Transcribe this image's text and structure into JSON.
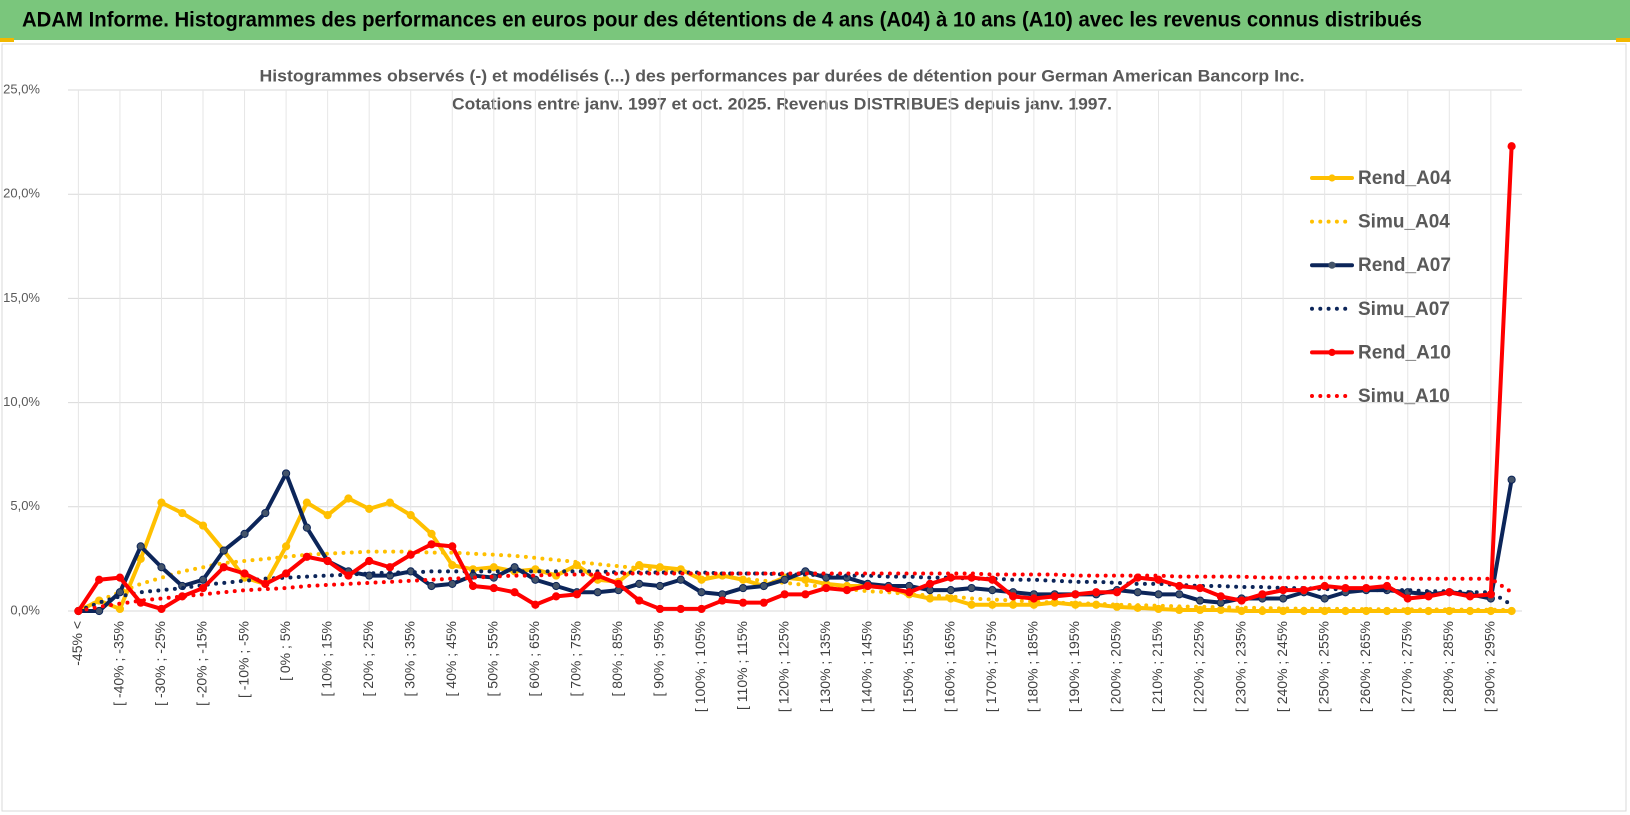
{
  "header": {
    "title": "ADAM Informe. Histogrammes des performances en euros pour des détentions de 4 ans (A04) à 10 ans (A10) avec les revenus connus distribués"
  },
  "chart_data": {
    "type": "line",
    "title": "Histogrammes observés (-) et modélisés (...) des performances par durées de détention pour German American Bancorp Inc.",
    "subtitle": "Cotations entre janv. 1997 et oct. 2025.  Revenus DISTRIBUES depuis janv. 1997.",
    "categories": [
      "-45% <",
      null,
      "[ -40% ; -35%",
      null,
      "[ -30% ; -25%",
      null,
      "[ -20% ; -15%",
      null,
      "[ -10% ; -5%",
      null,
      "[ 0% ; 5%",
      null,
      "[ 10% ; 15%",
      null,
      "[ 20% ; 25%",
      null,
      "[ 30% ; 35%",
      null,
      "[ 40% ; 45%",
      null,
      "[ 50% ; 55%",
      null,
      "[ 60% ; 65%",
      null,
      "[ 70% ; 75%",
      null,
      "[ 80% ; 85%",
      null,
      "[ 90% ; 95%",
      null,
      "[ 100% ; 105%",
      null,
      "[ 110% ; 115%",
      null,
      "[ 120% ; 125%",
      null,
      "[ 130% ; 135%",
      null,
      "[ 140% ; 145%",
      null,
      "[ 150% ; 155%",
      null,
      "[ 160% ; 165%",
      null,
      "[ 170% ; 175%",
      null,
      "[ 180% ; 185%",
      null,
      "[ 190% ; 195%",
      null,
      "[ 200% ; 205%",
      null,
      "[ 210% ; 215%",
      null,
      "[ 220% ; 225%",
      null,
      "[ 230% ; 235%",
      null,
      "[ 240% ; 245%",
      null,
      "[ 250% ; 255%",
      null,
      "[ 260% ; 265%",
      null,
      "[ 270% ; 275%",
      null,
      "[ 280% ; 285%",
      null,
      "[ 290% ; 295%",
      null
    ],
    "series": [
      {
        "name": "Rend_A04",
        "color": "#ffc000",
        "style": "solid",
        "values": [
          0,
          0.5,
          0.1,
          2.5,
          5.2,
          4.7,
          4.1,
          2.9,
          1.6,
          1.3,
          3.1,
          5.2,
          4.6,
          5.4,
          4.9,
          5.2,
          4.6,
          3.7,
          2.2,
          2.0,
          2.1,
          1.9,
          2.0,
          1.7,
          2.2,
          1.5,
          1.4,
          2.2,
          2.1,
          2.0,
          1.5,
          1.7,
          1.5,
          1.2,
          1.6,
          1.5,
          1.3,
          1.2,
          1.2,
          1.1,
          0.8,
          0.6,
          0.6,
          0.3,
          0.3,
          0.3,
          0.3,
          0.4,
          0.3,
          0.3,
          0.2,
          0.15,
          0.1,
          0.05,
          0.05,
          0.05,
          0,
          0,
          0,
          0,
          0,
          0,
          0,
          0,
          0,
          0,
          0,
          0,
          0,
          0
        ]
      },
      {
        "name": "Simu_A04",
        "color": "#ffc000",
        "style": "dotted",
        "values": [
          0,
          0.5,
          0.9,
          1.3,
          1.6,
          1.9,
          2.1,
          2.3,
          2.4,
          2.5,
          2.6,
          2.7,
          2.75,
          2.8,
          2.85,
          2.85,
          2.85,
          2.8,
          2.8,
          2.75,
          2.7,
          2.65,
          2.55,
          2.45,
          2.35,
          2.25,
          2.15,
          2.05,
          1.95,
          1.85,
          1.75,
          1.65,
          1.55,
          1.45,
          1.35,
          1.25,
          1.15,
          1.05,
          0.95,
          0.9,
          0.8,
          0.75,
          0.7,
          0.6,
          0.55,
          0.5,
          0.45,
          0.4,
          0.38,
          0.35,
          0.3,
          0.28,
          0.25,
          0.22,
          0.2,
          0.18,
          0.16,
          0.14,
          0.12,
          0.11,
          0.1,
          0.1,
          0.09,
          0.08,
          0.08,
          0.07,
          0.07,
          0.06,
          0.06,
          0.05
        ]
      },
      {
        "name": "Rend_A07",
        "color": "#0c2559",
        "style": "solid",
        "values": [
          0,
          0,
          0.9,
          3.1,
          2.1,
          1.2,
          1.5,
          2.9,
          3.7,
          4.7,
          6.6,
          4.0,
          2.4,
          1.9,
          1.7,
          1.7,
          1.9,
          1.2,
          1.3,
          1.7,
          1.6,
          2.1,
          1.5,
          1.2,
          0.9,
          0.9,
          1.0,
          1.3,
          1.2,
          1.5,
          0.9,
          0.8,
          1.1,
          1.2,
          1.5,
          1.9,
          1.6,
          1.6,
          1.3,
          1.2,
          1.2,
          1.0,
          1.0,
          1.1,
          1.0,
          0.9,
          0.8,
          0.8,
          0.8,
          0.8,
          1.0,
          0.9,
          0.8,
          0.8,
          0.5,
          0.4,
          0.6,
          0.6,
          0.6,
          0.9,
          0.6,
          0.9,
          1.0,
          1.0,
          0.9,
          0.8,
          0.9,
          0.8,
          0.6,
          6.3
        ]
      },
      {
        "name": "Simu_A07",
        "color": "#0c2559",
        "style": "dotted",
        "values": [
          0,
          0.4,
          0.7,
          0.9,
          1.0,
          1.1,
          1.25,
          1.35,
          1.45,
          1.55,
          1.6,
          1.65,
          1.7,
          1.75,
          1.8,
          1.85,
          1.85,
          1.9,
          1.9,
          1.9,
          1.9,
          1.9,
          1.9,
          1.9,
          1.9,
          1.9,
          1.85,
          1.85,
          1.85,
          1.85,
          1.85,
          1.8,
          1.8,
          1.8,
          1.75,
          1.75,
          1.7,
          1.7,
          1.7,
          1.65,
          1.65,
          1.6,
          1.6,
          1.55,
          1.55,
          1.5,
          1.5,
          1.45,
          1.4,
          1.4,
          1.35,
          1.3,
          1.3,
          1.25,
          1.2,
          1.2,
          1.15,
          1.15,
          1.1,
          1.1,
          1.05,
          1.05,
          1.0,
          1.0,
          1.0,
          0.95,
          0.95,
          0.9,
          0.9,
          0.3
        ]
      },
      {
        "name": "Rend_A10",
        "color": "#ff0000",
        "style": "solid",
        "values": [
          0,
          1.5,
          1.6,
          0.4,
          0.1,
          0.7,
          1.1,
          2.1,
          1.8,
          1.3,
          1.8,
          2.6,
          2.4,
          1.7,
          2.4,
          2.1,
          2.7,
          3.2,
          3.1,
          1.2,
          1.1,
          0.9,
          0.3,
          0.7,
          0.8,
          1.7,
          1.3,
          0.5,
          0.1,
          0.1,
          0.1,
          0.5,
          0.4,
          0.4,
          0.8,
          0.8,
          1.1,
          1.0,
          1.2,
          1.1,
          0.9,
          1.3,
          1.6,
          1.6,
          1.5,
          0.7,
          0.6,
          0.7,
          0.8,
          0.9,
          0.9,
          1.6,
          1.5,
          1.2,
          1.1,
          0.7,
          0.5,
          0.8,
          1.0,
          1.0,
          1.2,
          1.1,
          1.1,
          1.2,
          0.6,
          0.7,
          0.9,
          0.7,
          0.8,
          22.3
        ]
      },
      {
        "name": "Simu_A10",
        "color": "#ff0000",
        "style": "dotted",
        "values": [
          0,
          0.2,
          0.35,
          0.5,
          0.6,
          0.7,
          0.8,
          0.9,
          1.0,
          1.05,
          1.1,
          1.2,
          1.25,
          1.3,
          1.35,
          1.4,
          1.45,
          1.5,
          1.55,
          1.6,
          1.65,
          1.7,
          1.7,
          1.75,
          1.75,
          1.75,
          1.8,
          1.8,
          1.8,
          1.8,
          1.8,
          1.8,
          1.8,
          1.8,
          1.8,
          1.8,
          1.8,
          1.8,
          1.8,
          1.8,
          1.8,
          1.8,
          1.8,
          1.8,
          1.75,
          1.75,
          1.75,
          1.75,
          1.7,
          1.7,
          1.7,
          1.7,
          1.7,
          1.65,
          1.65,
          1.65,
          1.65,
          1.6,
          1.6,
          1.6,
          1.6,
          1.6,
          1.6,
          1.6,
          1.55,
          1.55,
          1.55,
          1.55,
          1.55,
          0.9
        ]
      }
    ],
    "ylim": [
      0,
      25
    ],
    "yticks": [
      {
        "value": 0,
        "label": "0,0%"
      },
      {
        "value": 5,
        "label": "5,0%"
      },
      {
        "value": 10,
        "label": "10,0%"
      },
      {
        "value": 15,
        "label": "15,0%"
      },
      {
        "value": 20,
        "label": "20,0%"
      },
      {
        "value": 25,
        "label": "25,0%"
      }
    ],
    "grid": true,
    "legend": "right"
  }
}
